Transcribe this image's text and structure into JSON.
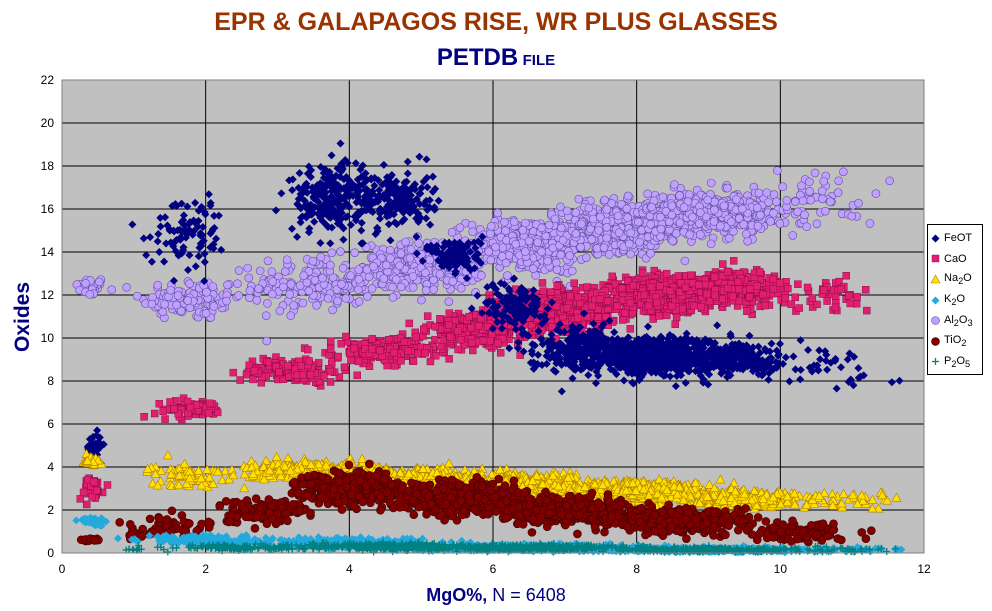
{
  "title": "EPR & GALAPAGOS RISE, WR PLUS GLASSES",
  "subtitle_main": "PETDB",
  "subtitle_small": "FILE",
  "chart_data": {
    "type": "scatter",
    "xlabel_bold": "MgO%,",
    "xlabel_rest": "N = 6408",
    "ylabel": "Oxides",
    "xlim": [
      0,
      12
    ],
    "ylim": [
      0,
      22
    ],
    "xticks": [
      "0",
      "2",
      "4",
      "6",
      "8",
      "10",
      "12"
    ],
    "yticks": [
      "0",
      "2",
      "4",
      "6",
      "8",
      "10",
      "12",
      "14",
      "16",
      "18",
      "20",
      "22"
    ],
    "grid": true,
    "legend_position": "right",
    "series": [
      {
        "key": "FeOT",
        "name": "FeOT",
        "label_html": "FeOT",
        "marker": "diamond",
        "color": "#000080",
        "clusters": [
          [
            0.45,
            5,
            0.08,
            0.4,
            40
          ],
          [
            1.8,
            15,
            0.4,
            1.2,
            90
          ],
          [
            3.7,
            16.5,
            0.35,
            1.1,
            220
          ],
          [
            4.6,
            16.5,
            0.4,
            1.0,
            200
          ],
          [
            5.5,
            13.8,
            0.25,
            0.6,
            120
          ],
          [
            6.3,
            11.5,
            0.3,
            0.8,
            120
          ],
          [
            7.2,
            9.5,
            0.5,
            0.8,
            260
          ],
          [
            8.2,
            9.2,
            0.5,
            0.6,
            600
          ],
          [
            9.3,
            9.0,
            0.6,
            0.6,
            300
          ],
          [
            10.8,
            8.5,
            0.5,
            0.8,
            30
          ]
        ]
      },
      {
        "key": "CaO",
        "name": "CaO",
        "label_html": "CaO",
        "marker": "square",
        "color": "#e0206f",
        "clusters": [
          [
            0.4,
            3,
            0.12,
            0.4,
            40
          ],
          [
            1.8,
            6.7,
            0.35,
            0.3,
            60
          ],
          [
            3.2,
            8.5,
            0.5,
            0.4,
            150
          ],
          [
            4.5,
            9.4,
            0.5,
            0.4,
            250
          ],
          [
            5.8,
            10.4,
            0.5,
            0.5,
            350
          ],
          [
            7.0,
            11.3,
            0.5,
            0.6,
            500
          ],
          [
            8.3,
            12.0,
            0.5,
            0.6,
            550
          ],
          [
            9.4,
            12.3,
            0.5,
            0.6,
            300
          ],
          [
            10.7,
            12.0,
            0.4,
            0.5,
            40
          ]
        ]
      },
      {
        "key": "Na2O",
        "name": "Na2O",
        "label_html": "Na<sub>2</sub>O",
        "marker": "triangle",
        "color": "#ffe000",
        "clusters": [
          [
            0.4,
            4.3,
            0.1,
            0.15,
            30
          ],
          [
            1.8,
            3.6,
            0.4,
            0.4,
            80
          ],
          [
            3.5,
            3.8,
            0.6,
            0.3,
            300
          ],
          [
            5.0,
            3.5,
            0.6,
            0.3,
            400
          ],
          [
            6.5,
            3.2,
            0.6,
            0.3,
            500
          ],
          [
            8.0,
            2.9,
            0.6,
            0.3,
            600
          ],
          [
            9.5,
            2.5,
            0.6,
            0.25,
            300
          ],
          [
            11.0,
            2.4,
            0.5,
            0.3,
            40
          ]
        ]
      },
      {
        "key": "K2O",
        "name": "K2O",
        "label_html": "K<sub>2</sub>O",
        "marker": "diamond",
        "color": "#22aadd",
        "clusters": [
          [
            0.4,
            1.5,
            0.12,
            0.15,
            40
          ],
          [
            2.0,
            0.6,
            0.6,
            0.15,
            150
          ],
          [
            4.0,
            0.45,
            0.8,
            0.15,
            350
          ],
          [
            6.5,
            0.25,
            1.0,
            0.1,
            500
          ],
          [
            9.0,
            0.15,
            1.0,
            0.08,
            400
          ],
          [
            11.0,
            0.15,
            0.5,
            0.08,
            40
          ]
        ]
      },
      {
        "key": "Al2O3",
        "name": "Al2O3",
        "label_html": "Al<sub>2</sub>O<sub>3</sub>",
        "marker": "circle",
        "color": "#c0a0ff",
        "clusters": [
          [
            0.4,
            12.4,
            0.15,
            0.3,
            40
          ],
          [
            1.8,
            11.8,
            0.5,
            0.7,
            120
          ],
          [
            3.5,
            12.5,
            0.6,
            0.9,
            180
          ],
          [
            5.0,
            13.3,
            0.6,
            0.8,
            250
          ],
          [
            6.5,
            14.3,
            0.6,
            0.9,
            400
          ],
          [
            7.8,
            15.2,
            0.6,
            0.8,
            500
          ],
          [
            9.0,
            15.8,
            0.6,
            0.7,
            500
          ],
          [
            10.5,
            16.5,
            0.6,
            1.0,
            60
          ]
        ]
      },
      {
        "key": "TiO2",
        "name": "TiO2",
        "label_html": "TiO<sub>2</sub>",
        "marker": "circle",
        "color": "#800000",
        "clusters": [
          [
            0.4,
            0.6,
            0.1,
            0.05,
            20
          ],
          [
            1.5,
            1.2,
            0.4,
            0.4,
            60
          ],
          [
            2.8,
            2.0,
            0.5,
            0.4,
            120
          ],
          [
            4.0,
            3.0,
            0.5,
            0.5,
            350
          ],
          [
            5.5,
            2.6,
            0.6,
            0.5,
            450
          ],
          [
            7.0,
            2.0,
            0.6,
            0.4,
            500
          ],
          [
            8.5,
            1.5,
            0.6,
            0.35,
            500
          ],
          [
            10.2,
            1.0,
            0.6,
            0.35,
            100
          ]
        ]
      },
      {
        "key": "P2O5",
        "name": "P2O5",
        "label_html": "P<sub>2</sub>O<sub>5</sub>",
        "marker": "plus",
        "color": "#008080",
        "clusters": [
          [
            1.0,
            0.15,
            0.1,
            0.05,
            10
          ],
          [
            2.5,
            0.25,
            0.8,
            0.1,
            150
          ],
          [
            4.5,
            0.3,
            0.8,
            0.12,
            300
          ],
          [
            6.5,
            0.25,
            1.0,
            0.1,
            400
          ],
          [
            9.0,
            0.15,
            1.0,
            0.08,
            300
          ],
          [
            11.0,
            0.15,
            0.5,
            0.1,
            30
          ]
        ]
      }
    ]
  }
}
